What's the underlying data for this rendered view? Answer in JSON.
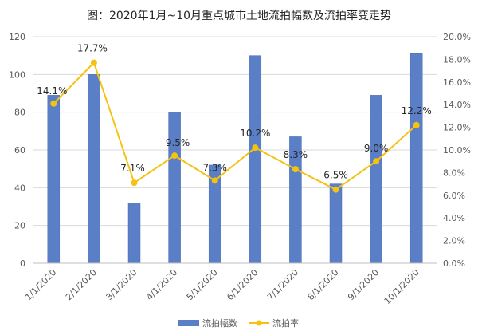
{
  "chart_data": {
    "type": "bar",
    "title": "图：2020年1月~10月重点城市土地流拍幅数及流拍率变走势",
    "categories": [
      "1/1/2020",
      "2/1/2020",
      "3/1/2020",
      "4/1/2020",
      "5/1/2020",
      "6/1/2020",
      "7/1/2020",
      "8/1/2020",
      "9/1/2020",
      "10/1/2020"
    ],
    "series": [
      {
        "name": "流拍幅数",
        "type": "bar",
        "axis": "left",
        "color": "#5b7fc7",
        "values": [
          89,
          100,
          32,
          80,
          52,
          110,
          67,
          42,
          89,
          111
        ]
      },
      {
        "name": "流拍率",
        "type": "line",
        "axis": "right",
        "color": "#f5c211",
        "values": [
          14.1,
          17.7,
          7.1,
          9.5,
          7.3,
          10.2,
          8.3,
          6.5,
          9.0,
          12.2
        ],
        "labels": [
          "14.1%",
          "17.7%",
          "7.1%",
          "9.5%",
          "7.3%",
          "10.2%",
          "8.3%",
          "6.5%",
          "9.0%",
          "12.2%"
        ]
      }
    ],
    "y_left": {
      "min": 0,
      "max": 120,
      "ticks": [
        "0",
        "20",
        "40",
        "60",
        "80",
        "100",
        "120"
      ]
    },
    "y_right": {
      "min": 0,
      "max": 20,
      "ticks": [
        "0.0%",
        "2.0%",
        "4.0%",
        "6.0%",
        "8.0%",
        "10.0%",
        "12.0%",
        "14.0%",
        "16.0%",
        "18.0%",
        "20.0%"
      ]
    },
    "grid": true,
    "legend_position": "bottom"
  }
}
